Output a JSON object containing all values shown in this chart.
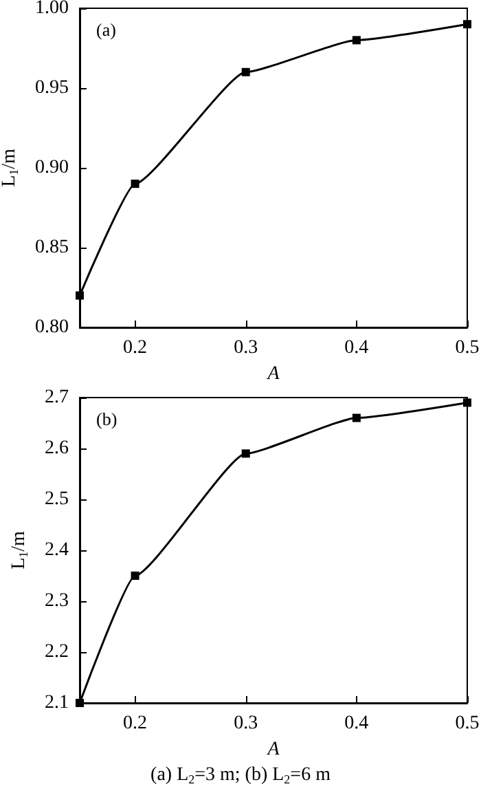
{
  "chart_data": [
    {
      "type": "line",
      "title": "(a)",
      "xlabel": "A",
      "ylabel": "L$_{1}$/m",
      "x": [
        0.15,
        0.2,
        0.3,
        0.4,
        0.5
      ],
      "series": [
        {
          "color": "#000000",
          "values": [
            0.82,
            0.89,
            0.96,
            0.98,
            0.99
          ]
        }
      ],
      "xlim": [
        0.15,
        0.5
      ],
      "xticks": [
        0.2,
        0.3,
        0.4,
        0.5
      ],
      "ylim": [
        0.8,
        1.0
      ],
      "yticks": [
        {
          "value": 0.8,
          "label": "0.80"
        },
        {
          "value": 0.85,
          "label": "0.85"
        },
        {
          "value": 0.9,
          "label": "0.90"
        },
        {
          "value": 0.95,
          "label": "0.95"
        },
        {
          "value": 1.0,
          "label": "1.00"
        }
      ],
      "grid": false,
      "marker": "square",
      "line_style": "solid"
    },
    {
      "type": "line",
      "title": "(b)",
      "xlabel": "A",
      "ylabel": "L$_{1}$/m",
      "x": [
        0.15,
        0.2,
        0.3,
        0.4,
        0.5
      ],
      "series": [
        {
          "color": "#000000",
          "values": [
            2.1,
            2.35,
            2.59,
            2.66,
            2.69
          ]
        }
      ],
      "xlim": [
        0.15,
        0.5
      ],
      "xticks": [
        0.2,
        0.3,
        0.4,
        0.5
      ],
      "ylim": [
        2.1,
        2.7
      ],
      "yticks": [
        2.1,
        2.2,
        2.3,
        2.4,
        2.5,
        2.6,
        2.7
      ],
      "grid": false,
      "marker": "square",
      "line_style": "solid",
      "annotations": [
        "(a) L$_{2}$=3 m; (b) L$_{2}$=6 m"
      ]
    }
  ]
}
